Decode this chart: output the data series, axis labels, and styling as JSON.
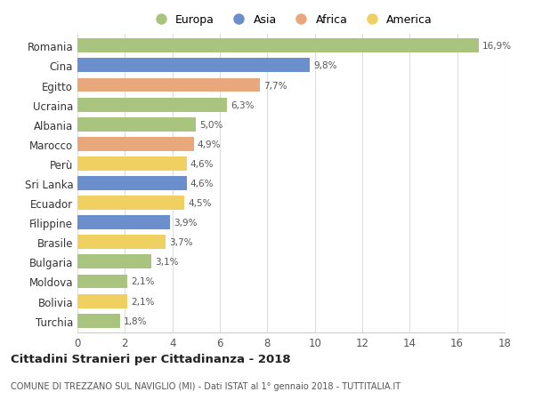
{
  "countries": [
    "Romania",
    "Cina",
    "Egitto",
    "Ucraina",
    "Albania",
    "Marocco",
    "Perù",
    "Sri Lanka",
    "Ecuador",
    "Filippine",
    "Brasile",
    "Bulgaria",
    "Moldova",
    "Bolivia",
    "Turchia"
  ],
  "values": [
    16.9,
    9.8,
    7.7,
    6.3,
    5.0,
    4.9,
    4.6,
    4.6,
    4.5,
    3.9,
    3.7,
    3.1,
    2.1,
    2.1,
    1.8
  ],
  "labels": [
    "16,9%",
    "9,8%",
    "7,7%",
    "6,3%",
    "5,0%",
    "4,9%",
    "4,6%",
    "4,6%",
    "4,5%",
    "3,9%",
    "3,7%",
    "3,1%",
    "2,1%",
    "2,1%",
    "1,8%"
  ],
  "bar_colors": [
    "#a8c47e",
    "#6b8fcc",
    "#e8a87c",
    "#a8c47e",
    "#a8c47e",
    "#e8a87c",
    "#f0d060",
    "#6b8fcc",
    "#f0d060",
    "#6b8fcc",
    "#f0d060",
    "#a8c47e",
    "#a8c47e",
    "#f0d060",
    "#a8c47e"
  ],
  "legend_colors": {
    "Europa": "#a8c47e",
    "Asia": "#6b8fcc",
    "Africa": "#e8a87c",
    "America": "#f0d060"
  },
  "title": "Cittadini Stranieri per Cittadinanza - 2018",
  "subtitle": "COMUNE DI TREZZANO SUL NAVIGLIO (MI) - Dati ISTAT al 1° gennaio 2018 - TUTTITALIA.IT",
  "xlim": [
    0,
    18
  ],
  "xticks": [
    0,
    2,
    4,
    6,
    8,
    10,
    12,
    14,
    16,
    18
  ],
  "background_color": "#ffffff",
  "grid_color": "#dddddd",
  "legend_order": [
    "Europa",
    "Asia",
    "Africa",
    "America"
  ]
}
